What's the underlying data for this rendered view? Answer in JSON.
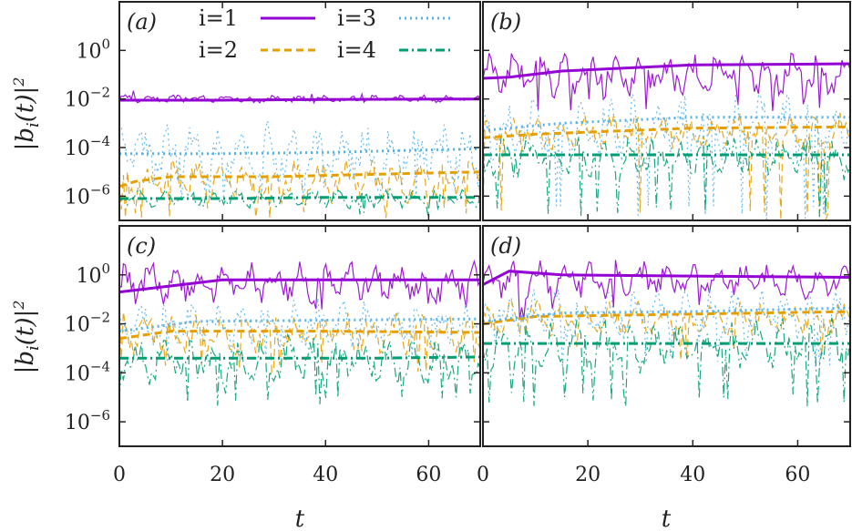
{
  "chart_data": {
    "type": "line",
    "layout": "2x2 panels",
    "xlabel": "t",
    "ylabel": "|b_i(t)|²",
    "xlim": [
      0,
      70
    ],
    "ylim_log10": [
      -7,
      2
    ],
    "x_ticks": [
      0,
      20,
      40,
      60
    ],
    "x_tick_labels": [
      "0",
      "20",
      "40",
      "60"
    ],
    "y_ticks_log10": [
      -6,
      -4,
      -2,
      0
    ],
    "y_tick_labels": [
      {
        "base": "10",
        "exp": "−6"
      },
      {
        "base": "10",
        "exp": "−4"
      },
      {
        "base": "10",
        "exp": "−2"
      },
      {
        "base": "10",
        "exp": "0"
      }
    ],
    "legend": [
      {
        "label": "i=1",
        "color": "#9400d3",
        "dash": "solid"
      },
      {
        "label": "i=2",
        "color": "#e69f00",
        "dash": "dashed"
      },
      {
        "label": "i=3",
        "color": "#56b4e9",
        "dash": "dotted"
      },
      {
        "label": "i=4",
        "color": "#009e73",
        "dash": "dash-dot"
      }
    ],
    "series_note": "Thick curves are time-averaged values; thin curves are instantaneous oscillating values (log10 scale).",
    "panels": [
      {
        "label": "(a)",
        "averages_log10": [
          {
            "name": "i=1",
            "points": [
              [
                0,
                -2.05
              ],
              [
                20,
                -2.05
              ],
              [
                40,
                -2.02
              ],
              [
                70,
                -2.0
              ]
            ]
          },
          {
            "name": "i=2",
            "points": [
              [
                0,
                -5.6
              ],
              [
                3,
                -5.4
              ],
              [
                10,
                -5.2
              ],
              [
                30,
                -5.2
              ],
              [
                50,
                -5.1
              ],
              [
                70,
                -5.0
              ]
            ]
          },
          {
            "name": "i=3",
            "points": [
              [
                0,
                -4.25
              ],
              [
                20,
                -4.25
              ],
              [
                40,
                -4.2
              ],
              [
                70,
                -4.05
              ]
            ]
          },
          {
            "name": "i=4",
            "points": [
              [
                0,
                -6.1
              ],
              [
                20,
                -6.1
              ],
              [
                40,
                -6.05
              ],
              [
                70,
                -6.05
              ]
            ]
          }
        ],
        "oscillation": [
          {
            "name": "i=1",
            "base": -2.0,
            "amp": 0.15,
            "floor": -2.2
          },
          {
            "name": "i=2",
            "base": -5.4,
            "amp": 0.8,
            "floor": -7.0
          },
          {
            "name": "i=3",
            "base": -4.3,
            "amp": 1.2,
            "floor": -6.2
          },
          {
            "name": "i=4",
            "base": -6.1,
            "amp": 0.35,
            "floor": -7.0
          }
        ]
      },
      {
        "label": "(b)",
        "averages_log10": [
          {
            "name": "i=1",
            "points": [
              [
                0,
                -1.15
              ],
              [
                5,
                -1.1
              ],
              [
                15,
                -0.85
              ],
              [
                40,
                -0.6
              ],
              [
                70,
                -0.55
              ]
            ]
          },
          {
            "name": "i=2",
            "points": [
              [
                0,
                -3.6
              ],
              [
                10,
                -3.45
              ],
              [
                40,
                -3.2
              ],
              [
                70,
                -3.15
              ]
            ]
          },
          {
            "name": "i=3",
            "points": [
              [
                0,
                -3.3
              ],
              [
                15,
                -3.0
              ],
              [
                40,
                -2.75
              ],
              [
                70,
                -2.75
              ]
            ]
          },
          {
            "name": "i=4",
            "points": [
              [
                0,
                -4.3
              ],
              [
                20,
                -4.3
              ],
              [
                50,
                -4.3
              ],
              [
                70,
                -4.3
              ]
            ]
          }
        ],
        "oscillation": [
          {
            "name": "i=1",
            "base": -1.0,
            "amp": 0.85,
            "floor": -2.5
          },
          {
            "name": "i=2",
            "base": -3.4,
            "amp": 0.7,
            "floor": -7.0
          },
          {
            "name": "i=3",
            "base": -3.2,
            "amp": 1.3,
            "floor": -7.0
          },
          {
            "name": "i=4",
            "base": -4.4,
            "amp": 0.8,
            "floor": -7.0
          }
        ]
      },
      {
        "label": "(c)",
        "averages_log10": [
          {
            "name": "i=1",
            "points": [
              [
                0,
                -0.7
              ],
              [
                8,
                -0.5
              ],
              [
                20,
                -0.2
              ],
              [
                70,
                -0.2
              ]
            ]
          },
          {
            "name": "i=2",
            "points": [
              [
                0,
                -2.6
              ],
              [
                10,
                -2.3
              ],
              [
                40,
                -2.3
              ],
              [
                70,
                -2.35
              ]
            ]
          },
          {
            "name": "i=3",
            "points": [
              [
                0,
                -2.3
              ],
              [
                15,
                -1.9
              ],
              [
                40,
                -1.85
              ],
              [
                70,
                -1.8
              ]
            ]
          },
          {
            "name": "i=4",
            "points": [
              [
                0,
                -3.4
              ],
              [
                20,
                -3.4
              ],
              [
                50,
                -3.4
              ],
              [
                70,
                -3.35
              ]
            ]
          }
        ],
        "oscillation": [
          {
            "name": "i=1",
            "base": -0.3,
            "amp": 0.75,
            "floor": -1.6
          },
          {
            "name": "i=2",
            "base": -2.4,
            "amp": 0.8,
            "floor": -4.0
          },
          {
            "name": "i=3",
            "base": -2.0,
            "amp": 0.9,
            "floor": -3.8
          },
          {
            "name": "i=4",
            "base": -3.5,
            "amp": 0.9,
            "floor": -5.4
          }
        ]
      },
      {
        "label": "(d)",
        "averages_log10": [
          {
            "name": "i=1",
            "points": [
              [
                0,
                -0.4
              ],
              [
                5,
                0.15
              ],
              [
                15,
                0.0
              ],
              [
                40,
                -0.05
              ],
              [
                70,
                -0.1
              ]
            ]
          },
          {
            "name": "i=2",
            "points": [
              [
                0,
                -2.0
              ],
              [
                10,
                -1.7
              ],
              [
                40,
                -1.6
              ],
              [
                70,
                -1.5
              ]
            ]
          },
          {
            "name": "i=3",
            "points": [
              [
                0,
                -1.9
              ],
              [
                15,
                -1.55
              ],
              [
                40,
                -1.5
              ],
              [
                70,
                -1.35
              ]
            ]
          },
          {
            "name": "i=4",
            "points": [
              [
                0,
                -2.8
              ],
              [
                20,
                -2.8
              ],
              [
                50,
                -2.8
              ],
              [
                70,
                -2.8
              ]
            ]
          }
        ],
        "oscillation": [
          {
            "name": "i=1",
            "base": -0.2,
            "amp": 0.7,
            "floor": -1.8
          },
          {
            "name": "i=2",
            "base": -1.8,
            "amp": 0.7,
            "floor": -3.5
          },
          {
            "name": "i=3",
            "base": -1.7,
            "amp": 1.0,
            "floor": -3.9
          },
          {
            "name": "i=4",
            "base": -2.9,
            "amp": 1.0,
            "floor": -5.4
          }
        ]
      }
    ]
  }
}
